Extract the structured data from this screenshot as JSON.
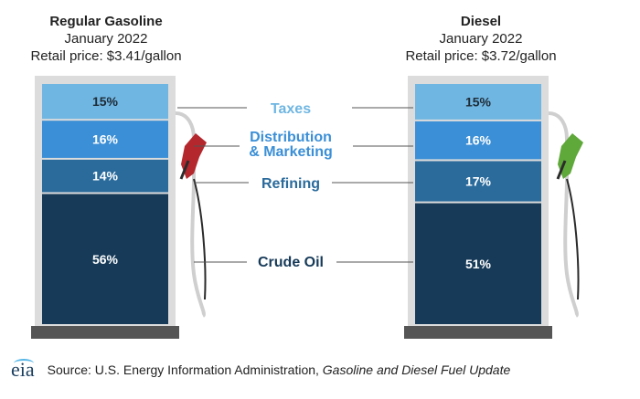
{
  "chart_data": {
    "type": "stacked-bar",
    "categories": [
      "Regular Gasoline",
      "Diesel"
    ],
    "components": [
      {
        "name": "Taxes",
        "color": "#6fb6e2"
      },
      {
        "name": "Distribution & Marketing",
        "color": "#3b8fd6"
      },
      {
        "name": "Refining",
        "color": "#2a6b9c"
      },
      {
        "name": "Crude Oil",
        "color": "#163a58"
      }
    ],
    "series": [
      {
        "name": "Regular Gasoline",
        "period": "January 2022",
        "retail_price": "Retail price: $3.41/gallon",
        "values": {
          "Taxes": 15,
          "Distribution & Marketing": 16,
          "Refining": 14,
          "Crude Oil": 56
        }
      },
      {
        "name": "Diesel",
        "period": "January 2022",
        "retail_price": "Retail price: $3.72/gallon",
        "values": {
          "Taxes": 15,
          "Distribution & Marketing": 16,
          "Refining": 17,
          "Crude Oil": 51
        }
      }
    ],
    "legend_labels": {
      "taxes": "Taxes",
      "distribution_line1": "Distribution",
      "distribution_line2": "& Marketing",
      "refining": "Refining",
      "crude": "Crude Oil"
    },
    "legend_colors": {
      "taxes": "#6fb6e2",
      "distribution": "#3b8fd6",
      "refining": "#2a6b9c",
      "crude": "#163a58"
    },
    "nozzle_colors": {
      "gasoline": "#b3272d",
      "diesel": "#5fa83a"
    },
    "unit": "%"
  },
  "footer": {
    "logo_text": "eia",
    "source_prefix": "Source: U.S. Energy Information Administration, ",
    "source_title": "Gasoline and Diesel Fuel Update"
  }
}
